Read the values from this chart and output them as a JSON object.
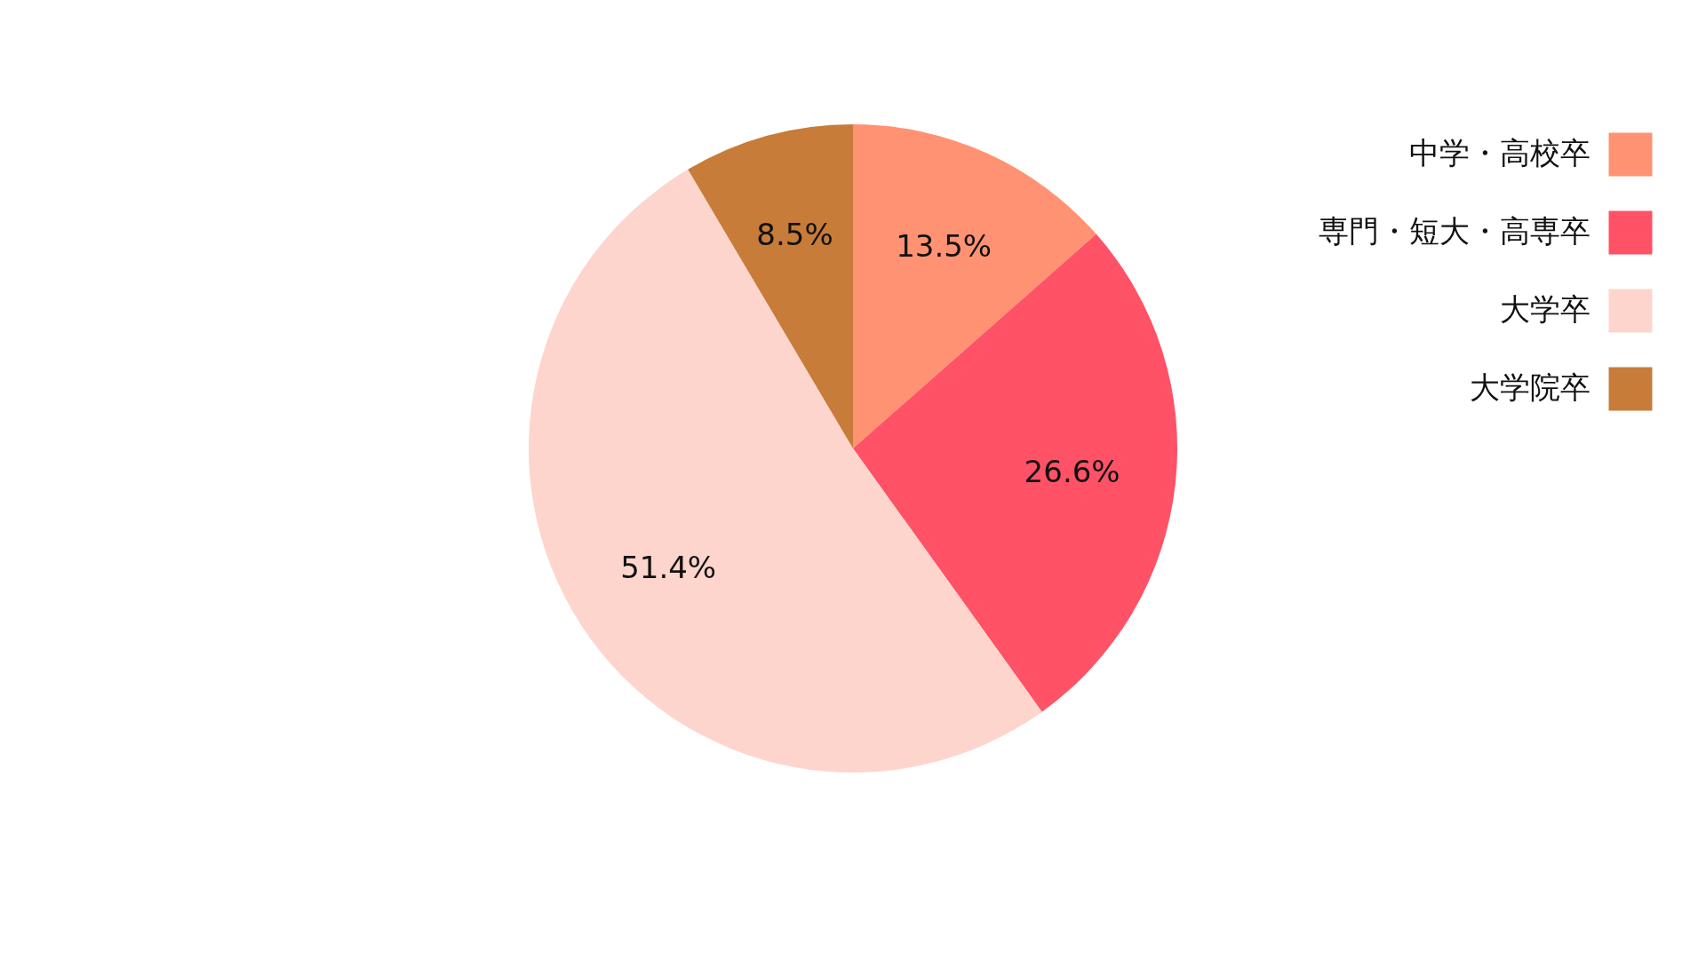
{
  "chart_data": {
    "type": "pie",
    "categories": [
      "中学・高校卒",
      "専門・短大・高専卒",
      "大学卒",
      "大学院卒"
    ],
    "values": [
      13.5,
      26.6,
      51.4,
      8.5
    ],
    "colors": [
      "#ff9273",
      "#ff5266",
      "#fdd5cc",
      "#c77c3a"
    ],
    "value_labels": [
      "13.5%",
      "26.6%",
      "51.4%",
      "8.5%"
    ],
    "legend": "top right"
  }
}
